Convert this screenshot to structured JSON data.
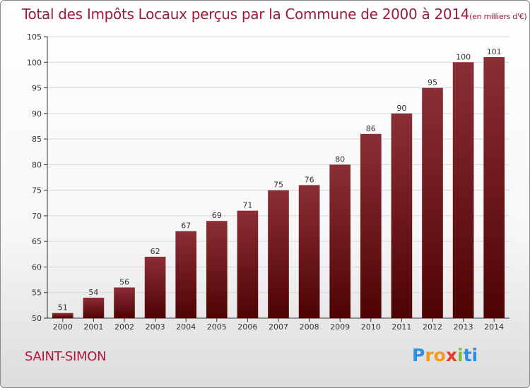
{
  "page": {
    "title": "Total des Impôts Locaux perçus par la Commune de 2000 à 2014",
    "subtitle": "(en milliers d'€)",
    "commune": "SAINT-SIMON",
    "logo_letters": [
      "P",
      "r",
      "o",
      "x",
      "i",
      "ti"
    ]
  },
  "colors": {
    "bar_top": "#8b2e36",
    "bar_bottom": "#4e0303",
    "title": "#9b1a3a",
    "grid": "#d7d7d7"
  },
  "chart_data": {
    "type": "bar",
    "title": "Total des Impôts Locaux perçus par la Commune de 2000 à 2014",
    "xlabel": "",
    "ylabel": "",
    "categories": [
      "2000",
      "2001",
      "2002",
      "2003",
      "2004",
      "2005",
      "2006",
      "2007",
      "2008",
      "2009",
      "2010",
      "2011",
      "2012",
      "2013",
      "2014"
    ],
    "values": [
      51,
      54,
      56,
      62,
      67,
      69,
      71,
      75,
      76,
      80,
      86,
      90,
      95,
      100,
      101
    ],
    "ylim": [
      50,
      105
    ],
    "yticks": [
      50,
      55,
      60,
      65,
      70,
      75,
      80,
      85,
      90,
      95,
      100,
      105
    ],
    "grid": true
  }
}
